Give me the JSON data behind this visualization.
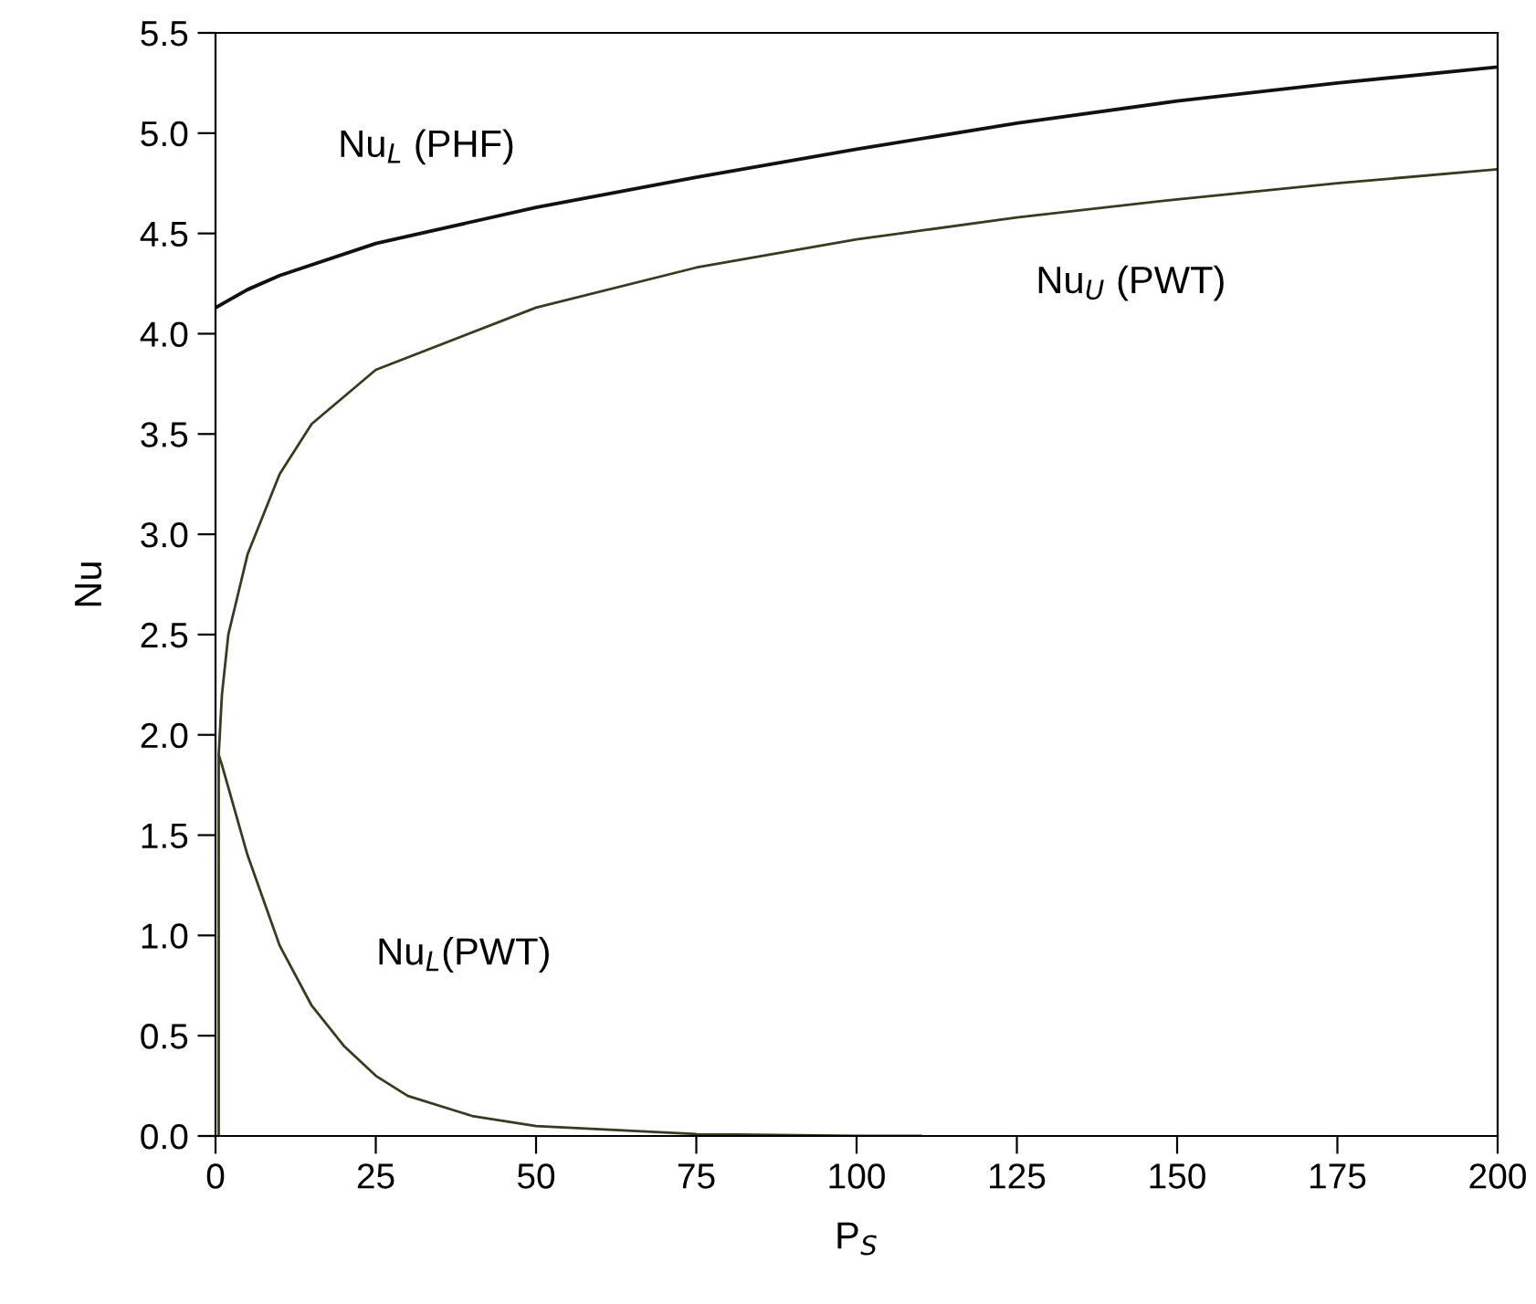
{
  "chart_data": {
    "type": "line",
    "xlabel": "P$_{S}$",
    "ylabel": "Nu",
    "xlim": [
      0,
      200
    ],
    "ylim": [
      0,
      5.5
    ],
    "xticks": [
      0,
      25,
      50,
      75,
      100,
      125,
      150,
      175,
      200
    ],
    "yticks": [
      {
        "value": 0,
        "label": "0.0"
      },
      {
        "value": 0.5,
        "label": "0.5"
      },
      {
        "value": 1,
        "label": "1.0"
      },
      {
        "value": 1.5,
        "label": "1.5"
      },
      {
        "value": 2,
        "label": "2.0"
      },
      {
        "value": 2.5,
        "label": "2.5"
      },
      {
        "value": 3,
        "label": "3.0"
      },
      {
        "value": 3.5,
        "label": "3.5"
      },
      {
        "value": 4,
        "label": "4.0"
      },
      {
        "value": 4.5,
        "label": "4.5"
      },
      {
        "value": 5,
        "label": "5.0"
      },
      {
        "value": 5.5,
        "label": "5.5"
      }
    ],
    "grid": false,
    "legend": false,
    "marker": "none",
    "line_style": "solid",
    "series": [
      {
        "name": "Nu$_{L}$ (PHF)",
        "color": "#111111",
        "x": [
          0,
          5,
          10,
          25,
          50,
          75,
          100,
          125,
          150,
          175,
          200
        ],
        "values": [
          4.13,
          4.22,
          4.29,
          4.45,
          4.63,
          4.78,
          4.92,
          5.05,
          5.16,
          5.25,
          5.33
        ]
      },
      {
        "name": "Nu$_{U}$ (PWT)",
        "color": "#3a3a20",
        "x": [
          0.5,
          1,
          2,
          5,
          10,
          15,
          25,
          50,
          75,
          100,
          125,
          150,
          175,
          200
        ],
        "values": [
          1.9,
          2.2,
          2.5,
          2.9,
          3.3,
          3.55,
          3.82,
          4.13,
          4.33,
          4.47,
          4.58,
          4.67,
          4.75,
          4.82
        ]
      },
      {
        "name": "Nu$_{L}$(PWT)",
        "color": "#3a3a20",
        "x": [
          0.5,
          0.5,
          1,
          5,
          10,
          15,
          20,
          25,
          30,
          40,
          50,
          75,
          100,
          110
        ],
        "values": [
          0,
          1.9,
          1.85,
          1.4,
          0.95,
          0.65,
          0.45,
          0.3,
          0.2,
          0.1,
          0.05,
          0.01,
          0,
          0
        ]
      }
    ]
  }
}
